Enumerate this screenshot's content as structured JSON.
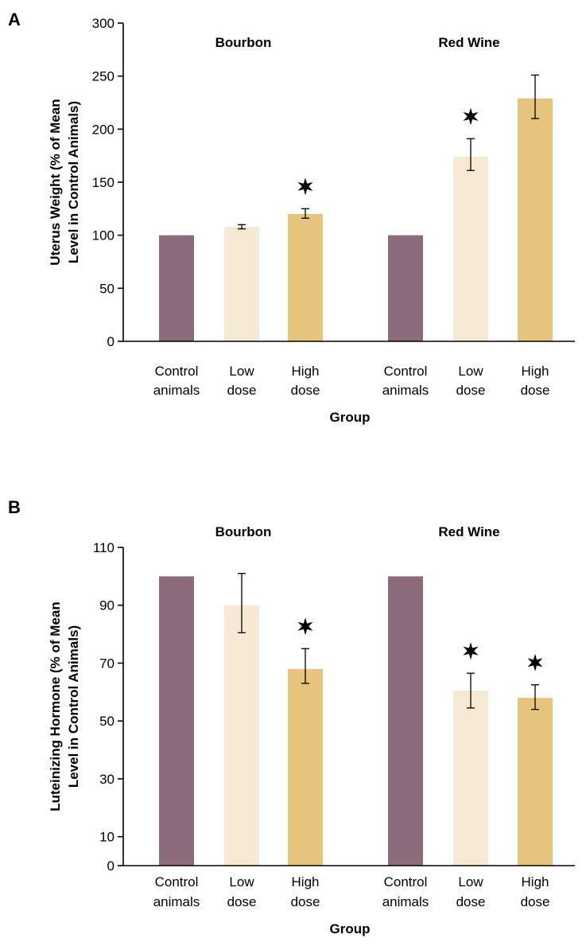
{
  "colors": {
    "control": "#8c6b7d",
    "low": "#f6e9d3",
    "high": "#e6c47e"
  },
  "chart_data": [
    {
      "type": "bar",
      "panel": "A",
      "groups": [
        "Bourbon",
        "Red Wine"
      ],
      "categories": [
        {
          "line1": "Control",
          "line2": "animals",
          "dose": "control"
        },
        {
          "line1": "Low",
          "line2": "dose",
          "dose": "low"
        },
        {
          "line1": "High",
          "line2": "dose",
          "dose": "high"
        },
        {
          "line1": "Control",
          "line2": "animals",
          "dose": "control"
        },
        {
          "line1": "Low",
          "line2": "dose",
          "dose": "low"
        },
        {
          "line1": "High",
          "line2": "dose",
          "dose": "high"
        }
      ],
      "values": [
        100,
        108,
        120,
        100,
        174,
        229
      ],
      "error": [
        null,
        [
          106,
          110
        ],
        [
          116,
          125
        ],
        null,
        [
          161,
          191
        ],
        [
          210,
          251
        ]
      ],
      "significant": [
        false,
        false,
        true,
        false,
        true,
        false
      ],
      "ylabel_line1": "Uterus Weight (% of Mean",
      "ylabel_line2": "Level in Control Animals)",
      "xlabel": "Group",
      "ylim": [
        0,
        300
      ],
      "yticks": [
        0,
        50,
        100,
        150,
        200,
        250,
        300
      ]
    },
    {
      "type": "bar",
      "panel": "B",
      "groups": [
        "Bourbon",
        "Red Wine"
      ],
      "categories": [
        {
          "line1": "Control",
          "line2": "animals",
          "dose": "control"
        },
        {
          "line1": "Low",
          "line2": "dose",
          "dose": "low"
        },
        {
          "line1": "High",
          "line2": "dose",
          "dose": "high"
        },
        {
          "line1": "Control",
          "line2": "animals",
          "dose": "control"
        },
        {
          "line1": "Low",
          "line2": "dose",
          "dose": "low"
        },
        {
          "line1": "High",
          "line2": "dose",
          "dose": "high"
        }
      ],
      "values": [
        100,
        90,
        68,
        100,
        60.5,
        58
      ],
      "error": [
        null,
        [
          80.5,
          101
        ],
        [
          63,
          75
        ],
        null,
        [
          54.5,
          66.5
        ],
        [
          54,
          62.5
        ]
      ],
      "significant": [
        false,
        false,
        true,
        false,
        true,
        true
      ],
      "ylabel_line1": "Luteinizing Hormone (% of Mean",
      "ylabel_line2": "Level in Control Animals)",
      "xlabel": "Group",
      "ylim": [
        0,
        110
      ],
      "yticks": [
        0,
        10,
        30,
        50,
        70,
        90,
        110
      ]
    }
  ]
}
